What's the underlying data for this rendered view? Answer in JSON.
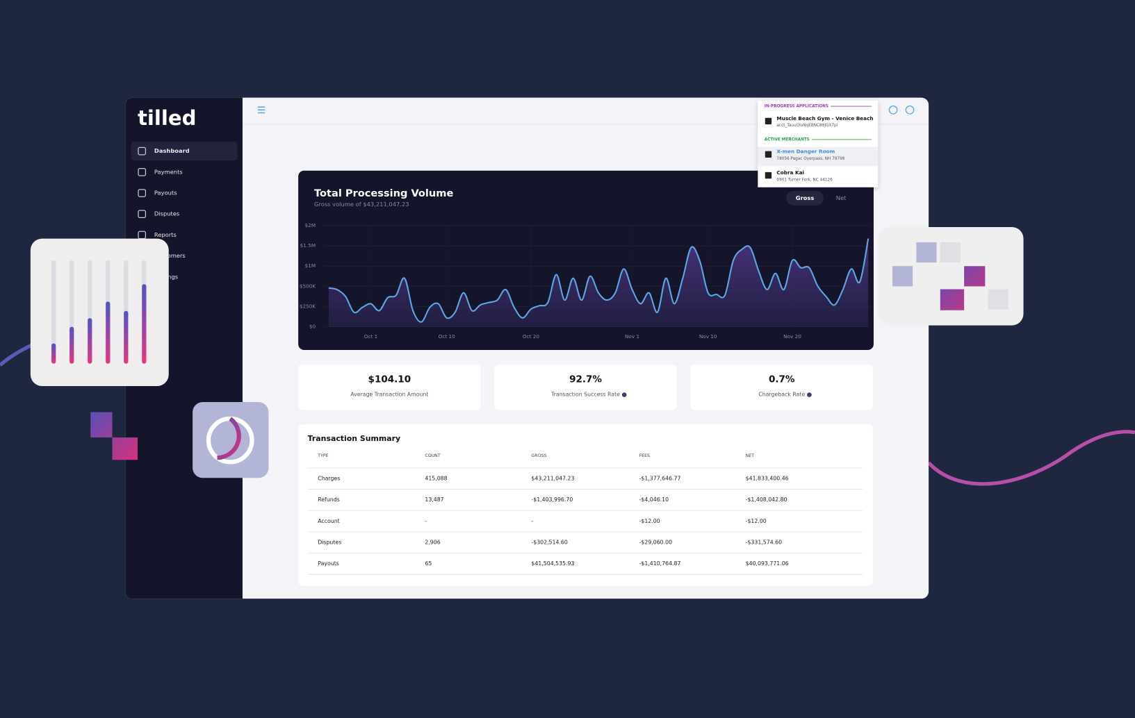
{
  "brand": "tilled",
  "sidebar": {
    "items": [
      "Dashboard",
      "Payments",
      "Payouts",
      "Disputes",
      "Reports",
      "Customers",
      "Settings"
    ]
  },
  "dropdown": {
    "sections": [
      {
        "title": "IN-PROGRESS APPLICATIONS",
        "items": [
          {
            "name": "Muscle Beach Gym - Venice Beach",
            "detail": "acct_TauuOluNqEBNC88JGX7pl"
          }
        ]
      },
      {
        "title": "ACTIVE MERCHANTS",
        "items": [
          {
            "name": "X-men Danger Room",
            "detail": "78056 Pagac Overpass, NH 79798"
          },
          {
            "name": "Cobra Kai",
            "detail": "0901 Turner Fork, NC 44126"
          }
        ]
      }
    ]
  },
  "chart_data": {
    "type": "line",
    "title": "Total Processing Volume",
    "subtitle": "Gross volume of $43,211,047.23",
    "toggle": [
      "Gross",
      "Net"
    ],
    "x": [
      -4,
      -3,
      -2,
      -1,
      0,
      1,
      2,
      3,
      4,
      5,
      6,
      7,
      8,
      9,
      10,
      11,
      12,
      13,
      14,
      15,
      16,
      17,
      18,
      19,
      20,
      21,
      22,
      23,
      24,
      25,
      26,
      27,
      28,
      29,
      30,
      31,
      32,
      33,
      34,
      35,
      36,
      37,
      38,
      39,
      40,
      41,
      42,
      43,
      44,
      45,
      46,
      47,
      48,
      49,
      50,
      51,
      52,
      53,
      54,
      55,
      56,
      57,
      58,
      59,
      60
    ],
    "series": [
      {
        "color": "#5aa9e6",
        "values": [
          480000,
          460000,
          375000,
          180000,
          240000,
          285000,
          200000,
          360000,
          390000,
          700000,
          200000,
          60000,
          240000,
          285000,
          110000,
          180000,
          420000,
          200000,
          270000,
          300000,
          330000,
          460000,
          240000,
          110000,
          220000,
          260000,
          300000,
          790000,
          330000,
          700000,
          330000,
          750000,
          420000,
          330000,
          420000,
          930000,
          460000,
          285000,
          420000,
          180000,
          700000,
          285000,
          700000,
          1460000,
          1140000,
          420000,
          400000,
          390000,
          1140000,
          1410000,
          1460000,
          880000,
          460000,
          820000,
          460000,
          1140000,
          960000,
          960000,
          510000,
          375000,
          270000,
          460000,
          930000,
          610000,
          1680000
        ]
      }
    ],
    "xlim": [
      -4.6,
      60.3
    ],
    "xticks": [
      {
        "value": 1,
        "label": "Oct 1"
      },
      {
        "value": 10,
        "label": "Oct 10"
      },
      {
        "value": 20,
        "label": "Oct 20"
      },
      {
        "value": 32,
        "label": "Nov 1"
      },
      {
        "value": 41,
        "label": "Nov 10"
      },
      {
        "value": 51,
        "label": "Nov 20"
      }
    ],
    "ylim": [
      0,
      2000000
    ],
    "yticks": [
      {
        "value": 0,
        "label": "$0"
      },
      {
        "value": 250000,
        "label": "$250K"
      },
      {
        "value": 500000,
        "label": "$500K"
      },
      {
        "value": 1000000,
        "label": "$1M"
      },
      {
        "value": 1500000,
        "label": "$1.5M"
      },
      {
        "value": 2000000,
        "label": "$2M"
      }
    ],
    "grid": true
  },
  "kpis": [
    {
      "value": "$104.10",
      "label": "Average Transaction Amount"
    },
    {
      "value": "92.7%",
      "label": "Transaction Success Rate"
    },
    {
      "value": "0.7%",
      "label": "Chargeback Rate"
    }
  ],
  "table": {
    "title": "Transaction Summary",
    "columns": [
      "TYPE",
      "COUNT",
      "GROSS",
      "FEES",
      "NET"
    ],
    "rows": [
      [
        "Charges",
        "415,088",
        "$43,211,047.23",
        "-$1,377,646.77",
        "$41,833,400.46"
      ],
      [
        "Refunds",
        "13,487",
        "-$1,403,996.70",
        "-$4,046.10",
        "-$1,408,042.80"
      ],
      [
        "Account",
        "-",
        "-",
        "-$12.00",
        "-$12.00"
      ],
      [
        "Disputes",
        "2,906",
        "-$302,514.60",
        "-$29,060.00",
        "-$331,574.60"
      ],
      [
        "Payouts",
        "65",
        "$41,504,535.93",
        "-$1,410,764.87",
        "$40,093,771.06"
      ]
    ]
  }
}
